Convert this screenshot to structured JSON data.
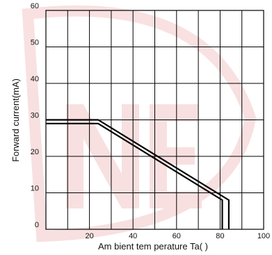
{
  "chart_data": {
    "type": "line",
    "xlabel": "Am bient tem perature Ta(   )",
    "ylabel": "Forward current(mA)",
    "xlim": [
      0,
      100
    ],
    "ylim": [
      0,
      60
    ],
    "x_ticks": [
      20,
      40,
      60,
      80,
      100
    ],
    "y_ticks": [
      0,
      10,
      20,
      30,
      40,
      50,
      60
    ],
    "grid": true,
    "vertical_gridlines_at": [
      10,
      20,
      30,
      40,
      50,
      60,
      70,
      80,
      90,
      100
    ],
    "series": [
      {
        "values": [
          [
            0,
            29
          ],
          [
            24,
            29
          ],
          [
            81,
            8
          ],
          [
            81,
            0
          ]
        ]
      },
      {
        "values": [
          [
            0,
            30
          ],
          [
            24,
            30
          ],
          [
            84,
            8
          ],
          [
            84,
            0
          ]
        ]
      }
    ],
    "line_color": "#000000",
    "watermark_color": "#d42b2b"
  }
}
